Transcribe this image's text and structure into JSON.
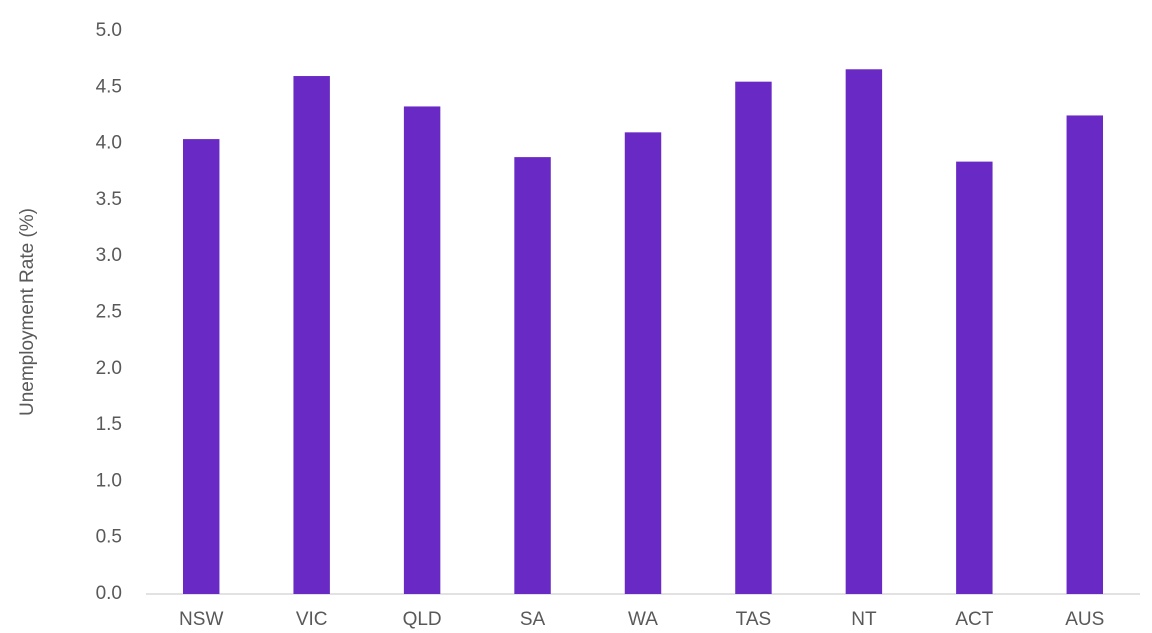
{
  "chart_data": {
    "type": "bar",
    "y_axis_label": "Unemployment Rate (%)",
    "categories": [
      "NSW",
      "VIC",
      "QLD",
      "SA",
      "WA",
      "TAS",
      "NT",
      "ACT",
      "AUS"
    ],
    "values": [
      4.04,
      4.6,
      4.33,
      3.88,
      4.1,
      4.55,
      4.66,
      3.84,
      4.25
    ],
    "color": "#6929c4",
    "ylim": [
      0,
      5
    ],
    "yticks": [
      {
        "value": 0,
        "label": "0.0"
      },
      0.5,
      {
        "value": 1,
        "label": "1.0"
      },
      1.5,
      {
        "value": 2,
        "label": "2.0"
      },
      2.5,
      {
        "value": 3,
        "label": "3.0"
      },
      3.5,
      {
        "value": 4,
        "label": "4.0"
      },
      4.5,
      {
        "value": 5,
        "label": "5.0"
      }
    ],
    "grid": false
  }
}
